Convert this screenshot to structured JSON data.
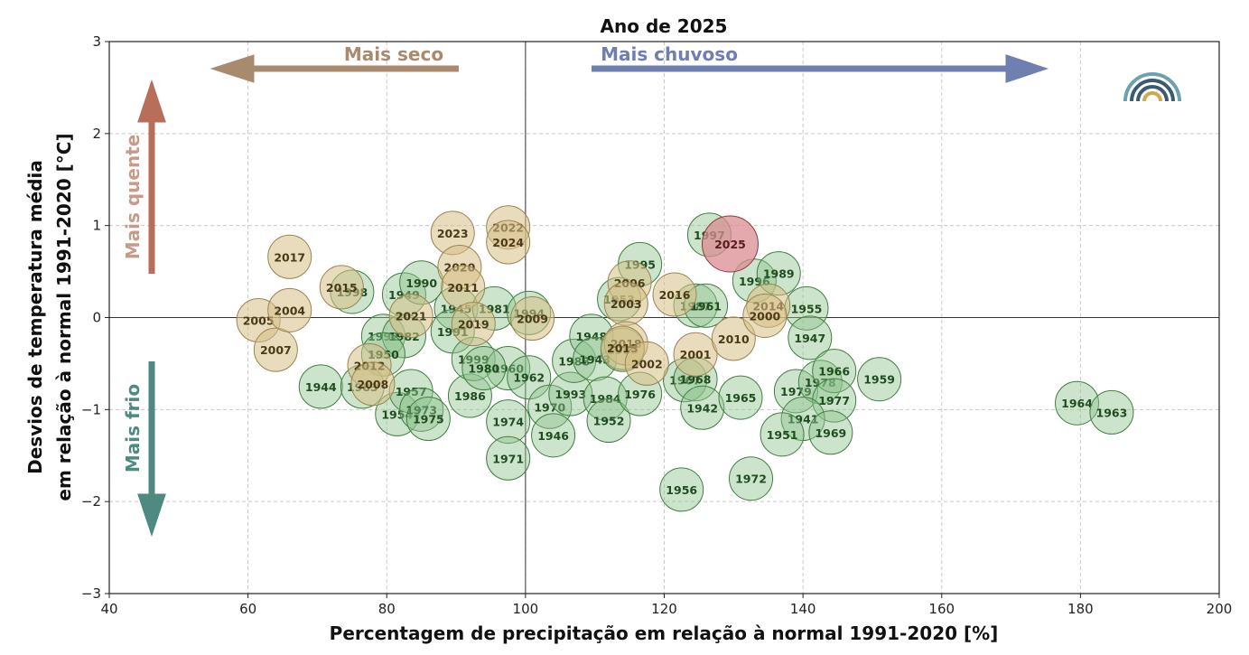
{
  "chart_data": {
    "type": "scatter",
    "title": "Ano de 2025",
    "xlabel": "Percentagem de precipitação em relação à normal 1991-2020 [%]",
    "ylabel_lines": [
      "Desvios de temperatura média",
      "em relação à normal 1991-2020 [°C]"
    ],
    "xlim": [
      40,
      200
    ],
    "ylim": [
      -3,
      3
    ],
    "xticks": [
      40,
      60,
      80,
      100,
      120,
      140,
      160,
      180,
      200
    ],
    "yticks": [
      -3,
      -2,
      -1,
      0,
      1,
      2,
      3
    ],
    "tick_text": {
      "x": [
        "40",
        "60",
        "80",
        "100",
        "120",
        "140",
        "160",
        "180",
        "200"
      ],
      "y": [
        "−3",
        "−2",
        "−1",
        "0",
        "1",
        "2",
        "3"
      ]
    },
    "grid": true,
    "reference_lines": {
      "x": 100,
      "y": 0
    },
    "annotations": {
      "drier": "Mais seco",
      "wetter": "Mais chuvoso",
      "warmer": "Mais quente",
      "colder": "Mais frio"
    },
    "colors": {
      "green_fill": "#8fc48f",
      "green_stroke": "#3f7f3f",
      "green_text": "#1f4d1f",
      "tan_fill": "#d6bf86",
      "tan_stroke": "#9a8450",
      "tan_text": "#4a3a16",
      "highlight_fill": "#d98c92",
      "highlight_stroke": "#8a3a40",
      "highlight_text": "#5a1a1f",
      "drier_arrow": "#a88a6e",
      "wetter_arrow": "#6e7fb0",
      "warmer_arrow": "#b86e58",
      "colder_arrow": "#4f8a82",
      "logo_outer": "#6aa3ad",
      "logo_mid": "#3a5a72",
      "logo_inner": "#d1a84a"
    },
    "points": [
      {
        "year": "1944",
        "x": 70.5,
        "y": -0.75,
        "group": "green"
      },
      {
        "year": "1992",
        "x": 79.5,
        "y": -0.2,
        "group": "green"
      },
      {
        "year": "1949",
        "x": 82.5,
        "y": 0.25,
        "group": "green"
      },
      {
        "year": "1990",
        "x": 85.0,
        "y": 0.38,
        "group": "green"
      },
      {
        "year": "1998",
        "x": 75.0,
        "y": 0.28,
        "group": "green"
      },
      {
        "year": "1982",
        "x": 82.5,
        "y": -0.2,
        "group": "green"
      },
      {
        "year": "1950",
        "x": 79.5,
        "y": -0.4,
        "group": "green"
      },
      {
        "year": "1983",
        "x": 76.5,
        "y": -0.75,
        "group": "green"
      },
      {
        "year": "1954",
        "x": 81.5,
        "y": -1.05,
        "group": "green"
      },
      {
        "year": "1957",
        "x": 83.5,
        "y": -0.8,
        "group": "green"
      },
      {
        "year": "1973",
        "x": 85.0,
        "y": -1.0,
        "group": "green"
      },
      {
        "year": "1975",
        "x": 86.0,
        "y": -1.1,
        "group": "green"
      },
      {
        "year": "1986",
        "x": 92.0,
        "y": -0.85,
        "group": "green"
      },
      {
        "year": "1945",
        "x": 90.0,
        "y": 0.1,
        "group": "green"
      },
      {
        "year": "1991",
        "x": 89.5,
        "y": -0.15,
        "group": "green"
      },
      {
        "year": "1981",
        "x": 95.5,
        "y": 0.1,
        "group": "green"
      },
      {
        "year": "1999",
        "x": 92.5,
        "y": -0.45,
        "group": "green"
      },
      {
        "year": "1960",
        "x": 97.5,
        "y": -0.55,
        "group": "green"
      },
      {
        "year": "1980",
        "x": 94.0,
        "y": -0.55,
        "group": "green"
      },
      {
        "year": "1994",
        "x": 100.5,
        "y": 0.05,
        "group": "green"
      },
      {
        "year": "1962",
        "x": 100.5,
        "y": -0.65,
        "group": "green"
      },
      {
        "year": "1974",
        "x": 97.5,
        "y": -1.13,
        "group": "green"
      },
      {
        "year": "1971",
        "x": 97.5,
        "y": -1.53,
        "group": "green"
      },
      {
        "year": "1970",
        "x": 103.5,
        "y": -0.97,
        "group": "green"
      },
      {
        "year": "1946",
        "x": 104.0,
        "y": -1.28,
        "group": "green"
      },
      {
        "year": "1993",
        "x": 106.5,
        "y": -0.83,
        "group": "green"
      },
      {
        "year": "1988",
        "x": 107.0,
        "y": -0.47,
        "group": "green"
      },
      {
        "year": "1948",
        "x": 109.5,
        "y": -0.2,
        "group": "green"
      },
      {
        "year": "1943",
        "x": 110.0,
        "y": -0.45,
        "group": "green"
      },
      {
        "year": "1984",
        "x": 111.5,
        "y": -0.88,
        "group": "green"
      },
      {
        "year": "1952",
        "x": 112.0,
        "y": -1.12,
        "group": "green"
      },
      {
        "year": "1953",
        "x": 113.5,
        "y": 0.2,
        "group": "green"
      },
      {
        "year": "1985",
        "x": 114.0,
        "y": -0.35,
        "group": "green"
      },
      {
        "year": "1995",
        "x": 116.5,
        "y": 0.58,
        "group": "green"
      },
      {
        "year": "1976",
        "x": 116.5,
        "y": -0.83,
        "group": "green"
      },
      {
        "year": "1997",
        "x": 126.5,
        "y": 0.9,
        "group": "green"
      },
      {
        "year": "1987",
        "x": 124.5,
        "y": 0.13,
        "group": "green"
      },
      {
        "year": "1961",
        "x": 126.0,
        "y": 0.13,
        "group": "green"
      },
      {
        "year": "1967",
        "x": 123.0,
        "y": -0.68,
        "group": "green"
      },
      {
        "year": "1968",
        "x": 124.5,
        "y": -0.67,
        "group": "green"
      },
      {
        "year": "1942",
        "x": 125.5,
        "y": -0.98,
        "group": "green"
      },
      {
        "year": "1956",
        "x": 122.5,
        "y": -1.87,
        "group": "green"
      },
      {
        "year": "1965",
        "x": 131.0,
        "y": -0.87,
        "group": "green"
      },
      {
        "year": "1972",
        "x": 132.5,
        "y": -1.75,
        "group": "green"
      },
      {
        "year": "1996",
        "x": 133.0,
        "y": 0.4,
        "group": "green"
      },
      {
        "year": "1989",
        "x": 136.5,
        "y": 0.48,
        "group": "green"
      },
      {
        "year": "1955",
        "x": 140.5,
        "y": 0.1,
        "group": "green"
      },
      {
        "year": "1947",
        "x": 141.0,
        "y": -0.22,
        "group": "green"
      },
      {
        "year": "1979",
        "x": 139.0,
        "y": -0.8,
        "group": "green"
      },
      {
        "year": "1978",
        "x": 142.5,
        "y": -0.7,
        "group": "green"
      },
      {
        "year": "1966",
        "x": 144.5,
        "y": -0.58,
        "group": "green"
      },
      {
        "year": "1977",
        "x": 144.5,
        "y": -0.9,
        "group": "green"
      },
      {
        "year": "1941",
        "x": 140.0,
        "y": -1.1,
        "group": "green"
      },
      {
        "year": "1951",
        "x": 137.0,
        "y": -1.27,
        "group": "green"
      },
      {
        "year": "1969",
        "x": 144.0,
        "y": -1.25,
        "group": "green"
      },
      {
        "year": "1959",
        "x": 151.0,
        "y": -0.67,
        "group": "green"
      },
      {
        "year": "1964",
        "x": 179.5,
        "y": -0.93,
        "group": "green"
      },
      {
        "year": "1963",
        "x": 184.5,
        "y": -1.03,
        "group": "green"
      },
      {
        "year": "2005",
        "x": 61.5,
        "y": -0.03,
        "group": "tan"
      },
      {
        "year": "2007",
        "x": 64.0,
        "y": -0.35,
        "group": "tan"
      },
      {
        "year": "2004",
        "x": 66.0,
        "y": 0.08,
        "group": "tan"
      },
      {
        "year": "2017",
        "x": 66.0,
        "y": 0.66,
        "group": "tan"
      },
      {
        "year": "2015",
        "x": 73.5,
        "y": 0.33,
        "group": "tan"
      },
      {
        "year": "2012",
        "x": 77.5,
        "y": -0.52,
        "group": "tan"
      },
      {
        "year": "2008",
        "x": 78.0,
        "y": -0.72,
        "group": "tan"
      },
      {
        "year": "2021",
        "x": 83.5,
        "y": 0.02,
        "group": "tan"
      },
      {
        "year": "2023",
        "x": 89.5,
        "y": 0.92,
        "group": "tan"
      },
      {
        "year": "2020",
        "x": 90.5,
        "y": 0.55,
        "group": "tan"
      },
      {
        "year": "2011",
        "x": 91.0,
        "y": 0.33,
        "group": "tan"
      },
      {
        "year": "2019",
        "x": 92.5,
        "y": -0.07,
        "group": "tan"
      },
      {
        "year": "2022",
        "x": 97.5,
        "y": 0.98,
        "group": "tan"
      },
      {
        "year": "2024",
        "x": 97.5,
        "y": 0.82,
        "group": "tan"
      },
      {
        "year": "2009",
        "x": 101.0,
        "y": -0.01,
        "group": "tan"
      },
      {
        "year": "2006",
        "x": 115.0,
        "y": 0.38,
        "group": "tan"
      },
      {
        "year": "2003",
        "x": 114.5,
        "y": 0.15,
        "group": "tan"
      },
      {
        "year": "2018",
        "x": 114.5,
        "y": -0.28,
        "group": "tan"
      },
      {
        "year": "2013",
        "x": 114.0,
        "y": -0.33,
        "group": "tan"
      },
      {
        "year": "2002",
        "x": 117.5,
        "y": -0.5,
        "group": "tan"
      },
      {
        "year": "2016",
        "x": 121.5,
        "y": 0.25,
        "group": "tan"
      },
      {
        "year": "2001",
        "x": 124.5,
        "y": -0.4,
        "group": "tan"
      },
      {
        "year": "2010",
        "x": 130.0,
        "y": -0.23,
        "group": "tan"
      },
      {
        "year": "2014",
        "x": 135.0,
        "y": 0.13,
        "group": "tan"
      },
      {
        "year": "2000",
        "x": 134.5,
        "y": 0.02,
        "group": "tan"
      },
      {
        "year": "2025",
        "x": 129.5,
        "y": 0.8,
        "group": "highlight"
      }
    ]
  }
}
